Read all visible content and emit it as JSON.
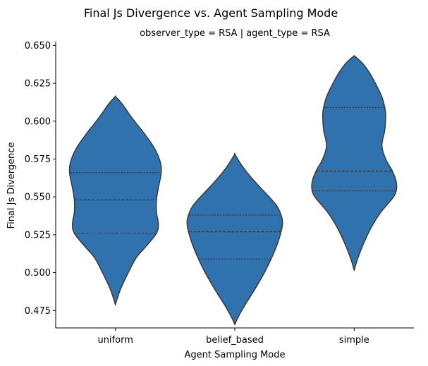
{
  "chart_data": {
    "type": "violin",
    "title": "Final Js Divergence vs. Agent Sampling Mode",
    "subtitle": "observer_type = RSA | agent_type = RSA",
    "xlabel": "Agent Sampling Mode",
    "ylabel": "Final Js Divergence",
    "ylim": [
      0.4635,
      0.6525
    ],
    "yticks": [
      "0.475",
      "0.500",
      "0.525",
      "0.550",
      "0.575",
      "0.600",
      "0.625",
      "0.650"
    ],
    "grid": false,
    "inner": "quartile",
    "color": "#2f72ad",
    "edge_color": "#3a3a3a",
    "categories": [
      "uniform",
      "belief_based",
      "simple"
    ],
    "violins": [
      {
        "category": "uniform",
        "min": 0.479,
        "q1": 0.526,
        "median": 0.548,
        "q3": 0.566,
        "max": 0.616,
        "profile": [
          [
            0.479,
            0.002
          ],
          [
            0.484,
            0.05
          ],
          [
            0.49,
            0.12
          ],
          [
            0.5,
            0.27
          ],
          [
            0.51,
            0.44
          ],
          [
            0.518,
            0.66
          ],
          [
            0.526,
            0.86
          ],
          [
            0.532,
            0.9
          ],
          [
            0.54,
            0.86
          ],
          [
            0.548,
            0.86
          ],
          [
            0.556,
            0.9
          ],
          [
            0.566,
            0.96
          ],
          [
            0.573,
            0.94
          ],
          [
            0.582,
            0.82
          ],
          [
            0.592,
            0.6
          ],
          [
            0.6,
            0.4
          ],
          [
            0.606,
            0.26
          ],
          [
            0.611,
            0.15
          ],
          [
            0.616,
            0.01
          ]
        ]
      },
      {
        "category": "belief_based",
        "min": 0.466,
        "q1": 0.509,
        "median": 0.527,
        "q3": 0.538,
        "max": 0.578,
        "profile": [
          [
            0.466,
            0.005
          ],
          [
            0.47,
            0.06
          ],
          [
            0.478,
            0.2
          ],
          [
            0.488,
            0.4
          ],
          [
            0.5,
            0.62
          ],
          [
            0.509,
            0.76
          ],
          [
            0.518,
            0.88
          ],
          [
            0.527,
            0.97
          ],
          [
            0.533,
            1.0
          ],
          [
            0.538,
            0.97
          ],
          [
            0.544,
            0.88
          ],
          [
            0.55,
            0.72
          ],
          [
            0.558,
            0.48
          ],
          [
            0.566,
            0.26
          ],
          [
            0.572,
            0.12
          ],
          [
            0.578,
            0.005
          ]
        ]
      },
      {
        "category": "simple",
        "min": 0.502,
        "q1": 0.554,
        "median": 0.567,
        "q3": 0.609,
        "max": 0.643,
        "profile": [
          [
            0.502,
            0.005
          ],
          [
            0.508,
            0.06
          ],
          [
            0.518,
            0.18
          ],
          [
            0.53,
            0.36
          ],
          [
            0.54,
            0.56
          ],
          [
            0.549,
            0.8
          ],
          [
            0.554,
            0.88
          ],
          [
            0.56,
            0.88
          ],
          [
            0.567,
            0.8
          ],
          [
            0.575,
            0.66
          ],
          [
            0.584,
            0.58
          ],
          [
            0.594,
            0.64
          ],
          [
            0.604,
            0.66
          ],
          [
            0.609,
            0.64
          ],
          [
            0.616,
            0.58
          ],
          [
            0.624,
            0.46
          ],
          [
            0.632,
            0.32
          ],
          [
            0.638,
            0.18
          ],
          [
            0.641,
            0.08
          ],
          [
            0.643,
            0.005
          ]
        ]
      }
    ]
  }
}
